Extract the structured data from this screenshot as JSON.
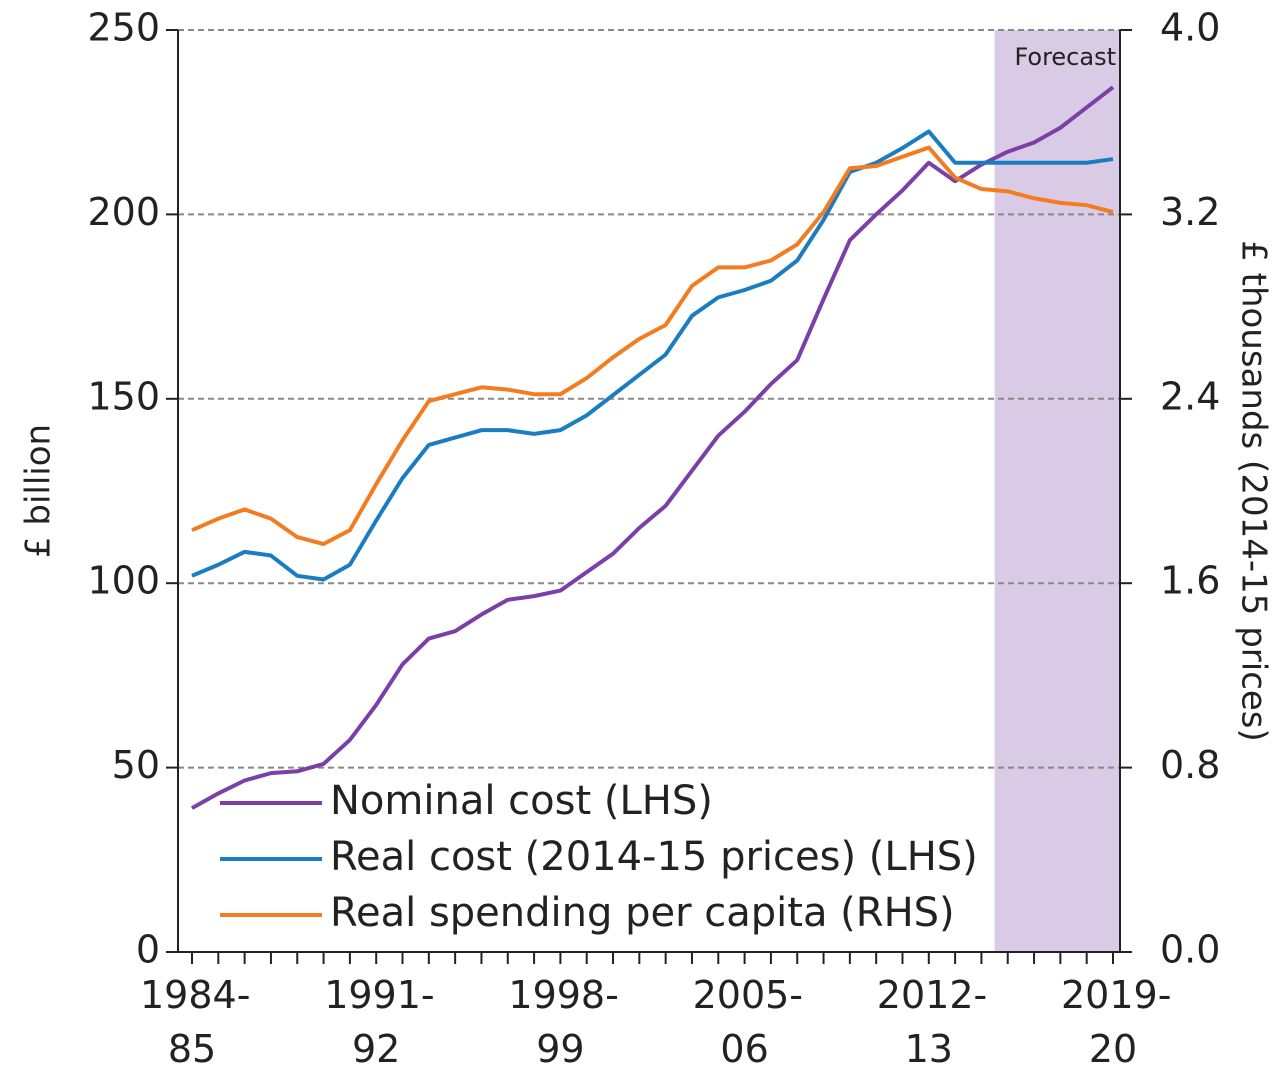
{
  "chart_data": {
    "type": "line",
    "ylabel": "£ billion",
    "y2label": "£ thousands (2014-15 prices)",
    "annotation": "Forecast",
    "categories": [
      "1984-85",
      null,
      null,
      null,
      null,
      null,
      null,
      "1991-92",
      null,
      null,
      null,
      null,
      null,
      null,
      "1998-99",
      null,
      null,
      null,
      null,
      null,
      null,
      "2005-06",
      null,
      null,
      null,
      null,
      null,
      null,
      "2012-13",
      null,
      null,
      null,
      null,
      null,
      null,
      "2019-20"
    ],
    "series": [
      {
        "name": "Nominal cost (LHS)",
        "color": "#7b3fa8",
        "axis": "y",
        "values": [
          39,
          43,
          46.5,
          48.5,
          49,
          51,
          57.5,
          67,
          78,
          85,
          87,
          91.5,
          95.5,
          96.5,
          98,
          103,
          108,
          115,
          121,
          130.5,
          140,
          146.5,
          154,
          160.5,
          177,
          193,
          200,
          206.5,
          214,
          209,
          213.5,
          217,
          219.5,
          223.5,
          229,
          234.5
        ]
      },
      {
        "name": "Real cost (2014-15 prices) (LHS)",
        "color": "#1b7dc1",
        "axis": "y",
        "values": [
          102,
          105,
          108.5,
          107.5,
          102,
          101,
          105,
          117,
          128.5,
          137.5,
          139.5,
          141.5,
          141.5,
          140.5,
          141.5,
          145.5,
          151,
          156.5,
          162,
          172.5,
          177.5,
          179.5,
          182,
          187.5,
          198.5,
          211.5,
          214,
          218,
          222.5,
          214,
          214,
          214,
          214,
          214,
          214,
          215
        ]
      },
      {
        "name": "Real spending per capita (RHS)",
        "color": "#f47c20",
        "axis": "y2",
        "values": [
          1.83,
          1.88,
          1.92,
          1.88,
          1.8,
          1.77,
          1.83,
          2.03,
          2.22,
          2.39,
          2.42,
          2.45,
          2.44,
          2.42,
          2.42,
          2.49,
          2.58,
          2.66,
          2.72,
          2.89,
          2.97,
          2.97,
          3.0,
          3.07,
          3.21,
          3.4,
          3.41,
          3.45,
          3.49,
          3.36,
          3.31,
          3.3,
          3.27,
          3.25,
          3.24,
          3.21
        ]
      }
    ],
    "ylim": [
      0,
      250
    ],
    "yticks": [
      0,
      50,
      100,
      150,
      200,
      250
    ],
    "y2lim": [
      0,
      4
    ],
    "y2ticks": [
      {
        "value": 0,
        "label": "0.0"
      },
      0.8,
      1.6,
      2.4,
      3.2,
      {
        "value": 4,
        "label": "4.0"
      }
    ],
    "grid": true,
    "legend": "lower left"
  }
}
